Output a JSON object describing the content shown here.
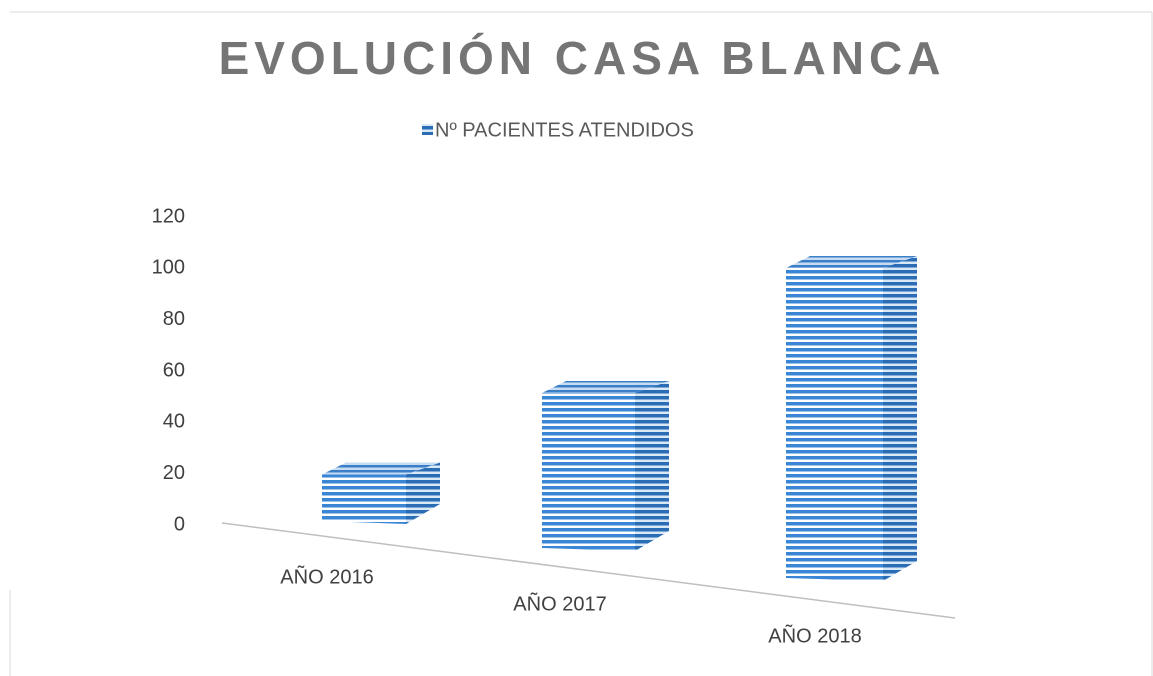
{
  "chart_data": {
    "type": "bar3d",
    "title": "EVOLUCIÓN CASA BLANCA",
    "categories": [
      "AÑO 2016",
      "AÑO 2017",
      "AÑO 2018"
    ],
    "series": [
      {
        "name": "Nº PACIENTES ATENDIDOS",
        "color": "#5b9bd5",
        "values": [
          15,
          50,
          100
        ]
      }
    ],
    "ylim": [
      0,
      120
    ],
    "yticks": [
      0,
      20,
      40,
      60,
      80,
      100,
      120
    ],
    "legend": "top",
    "grid": false
  }
}
